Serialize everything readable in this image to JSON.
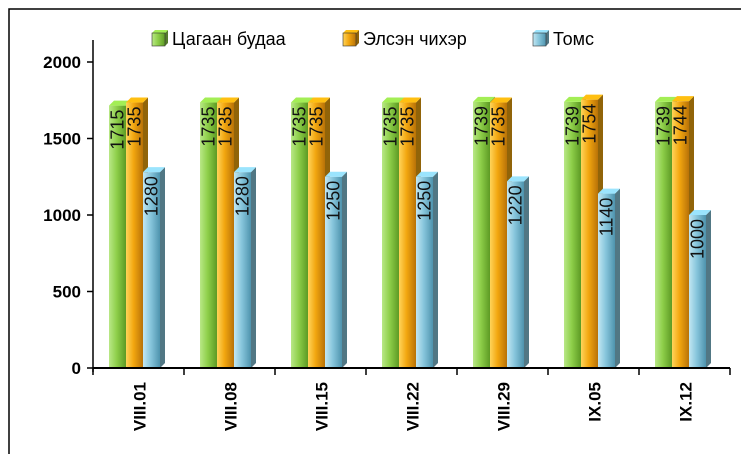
{
  "chart_data": {
    "type": "bar",
    "bar_style": "3d",
    "categories": [
      "VIII.01",
      "VIII.08",
      "VIII.15",
      "VIII.22",
      "VIII.29",
      "IX.05",
      "IX.12"
    ],
    "series": [
      {
        "name": "Цагаан будаа",
        "values": [
          1715,
          1735,
          1735,
          1735,
          1739,
          1739,
          1739
        ],
        "color": "#8ecf4a"
      },
      {
        "name": "Элсэн чихэр",
        "values": [
          1735,
          1735,
          1735,
          1735,
          1735,
          1754,
          1744
        ],
        "color": "#f2a60f"
      },
      {
        "name": "Томс",
        "values": [
          1280,
          1280,
          1250,
          1250,
          1220,
          1140,
          1000
        ],
        "color": "#87c6dc"
      }
    ],
    "yticks": [
      "0",
      "500",
      "1000",
      "1500",
      "2000"
    ],
    "ylim": [
      0,
      2000
    ],
    "grid": false,
    "legend_position": "top",
    "data_labels": "rotated-inside-top",
    "title": "",
    "xlabel": "",
    "ylabel": ""
  }
}
